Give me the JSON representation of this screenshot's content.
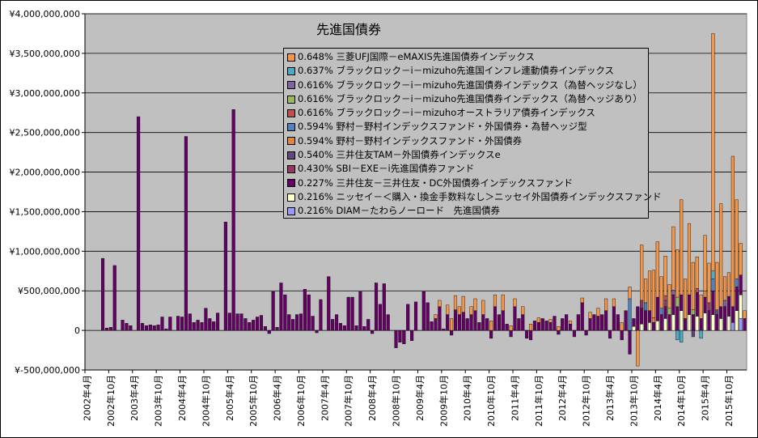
{
  "chart_data": {
    "type": "bar",
    "stacked": true,
    "title": "先進国債券",
    "xlabel": "",
    "ylabel": "",
    "ylim": [
      -500000000,
      4000000000
    ],
    "y_ticks": [
      -500000000,
      0,
      500000000,
      1000000000,
      1500000000,
      2000000000,
      2500000000,
      3000000000,
      3500000000,
      4000000000
    ],
    "y_tick_labels": [
      "¥-500,000,000",
      "0",
      "¥500,000,000",
      "¥1,000,000,000",
      "¥1,500,000,000",
      "¥2,000,000,000",
      "¥2,500,000,000",
      "¥3,000,000,000",
      "¥3,500,000,000",
      "¥4,000,000,000"
    ],
    "x_tick_labels": [
      "2002年4月",
      "2002年10月",
      "2003年4月",
      "2003年10月",
      "2004年4月",
      "2004年10月",
      "2005年4月",
      "2005年10月",
      "2006年4月",
      "2006年10月",
      "2007年4月",
      "2007年10月",
      "2008年4月",
      "2008年10月",
      "2009年4月",
      "2009年10月",
      "2010年4月",
      "2010年10月",
      "2011年4月",
      "2011年10月",
      "2012年4月",
      "2012年10月",
      "2013年4月",
      "2013年10月",
      "2014年4月",
      "2014年10月",
      "2015年4月",
      "2015年10月"
    ],
    "grid": true,
    "legend_position": "top-center",
    "background": "#c0c0c0",
    "categories": [
      "2002年4月",
      "2002年5月",
      "2002年6月",
      "2002年7月",
      "2002年8月",
      "2002年9月",
      "2002年10月",
      "2002年11月",
      "2002年12月",
      "2003年1月",
      "2003年2月",
      "2003年3月",
      "2003年4月",
      "2003年5月",
      "2003年6月",
      "2003年7月",
      "2003年8月",
      "2003年9月",
      "2003年10月",
      "2003年11月",
      "2003年12月",
      "2004年1月",
      "2004年2月",
      "2004年3月",
      "2004年4月",
      "2004年5月",
      "2004年6月",
      "2004年7月",
      "2004年8月",
      "2004年9月",
      "2004年10月",
      "2004年11月",
      "2004年12月",
      "2005年1月",
      "2005年2月",
      "2005年3月",
      "2005年4月",
      "2005年5月",
      "2005年6月",
      "2005年7月",
      "2005年8月",
      "2005年9月",
      "2005年10月",
      "2005年11月",
      "2005年12月",
      "2006年1月",
      "2006年2月",
      "2006年3月",
      "2006年4月",
      "2006年5月",
      "2006年6月",
      "2006年7月",
      "2006年8月",
      "2006年9月",
      "2006年10月",
      "2006年11月",
      "2006年12月",
      "2007年1月",
      "2007年2月",
      "2007年3月",
      "2007年4月",
      "2007年5月",
      "2007年6月",
      "2007年7月",
      "2007年8月",
      "2007年9月",
      "2007年10月",
      "2007年11月",
      "2007年12月",
      "2008年1月",
      "2008年2月",
      "2008年3月",
      "2008年4月",
      "2008年5月",
      "2008年6月",
      "2008年7月",
      "2008年8月",
      "2008年9月",
      "2008年10月",
      "2008年11月",
      "2008年12月",
      "2009年1月",
      "2009年2月",
      "2009年3月",
      "2009年4月",
      "2009年5月",
      "2009年6月",
      "2009年7月",
      "2009年8月",
      "2009年9月",
      "2009年10月",
      "2009年11月",
      "2009年12月",
      "2010年1月",
      "2010年2月",
      "2010年3月",
      "2010年4月",
      "2010年5月",
      "2010年6月",
      "2010年7月",
      "2010年8月",
      "2010年9月",
      "2010年10月",
      "2010年11月",
      "2010年12月",
      "2011年1月",
      "2011年2月",
      "2011年3月",
      "2011年4月",
      "2011年5月",
      "2011年6月",
      "2011年7月",
      "2011年8月",
      "2011年9月",
      "2011年10月",
      "2011年11月",
      "2011年12月",
      "2012年1月",
      "2012年2月",
      "2012年3月",
      "2012年4月",
      "2012年5月",
      "2012年6月",
      "2012年7月",
      "2012年8月",
      "2012年9月",
      "2012年10月",
      "2012年11月",
      "2012年12月",
      "2013年1月",
      "2013年2月",
      "2013年3月",
      "2013年4月",
      "2013年5月",
      "2013年6月",
      "2013年7月",
      "2013年8月",
      "2013年9月",
      "2013年10月",
      "2013年11月",
      "2013年12月",
      "2014年1月",
      "2014年2月",
      "2014年3月",
      "2014年4月",
      "2014年5月",
      "2014年6月",
      "2014年7月",
      "2014年8月",
      "2014年9月",
      "2014年10月",
      "2014年11月",
      "2014年12月",
      "2015年1月",
      "2015年2月",
      "2015年3月",
      "2015年4月",
      "2015年5月",
      "2015年6月",
      "2015年7月",
      "2015年8月",
      "2015年9月",
      "2015年10月",
      "2015年11月",
      "2015年12月",
      "2016年1月",
      "2016年2月"
    ],
    "series": [
      {
        "name": "0.648% 三菱UFJ国際－eMAXIS先進国債券インデックス",
        "color": "#f79646",
        "points": [
          [
            "2009年8月",
            50000000.0
          ],
          [
            "2009年9月",
            80000000.0
          ],
          [
            "2009年11月",
            120000000.0
          ],
          [
            "2009年12月",
            150000000.0
          ],
          [
            "2010年1月",
            180000000.0
          ],
          [
            "2010年2月",
            100000000.0
          ],
          [
            "2010年3月",
            200000000.0
          ],
          [
            "2010年5月",
            100000000.0
          ],
          [
            "2010年6月",
            150000000.0
          ],
          [
            "2010年8月",
            180000000.0
          ],
          [
            "2010年10月",
            120000000.0
          ],
          [
            "2010年11月",
            150000000.0
          ],
          [
            "2011年1月",
            200000000.0
          ],
          [
            "2011年3月",
            60000000.0
          ],
          [
            "2011年4月",
            100000000.0
          ],
          [
            "2011年6月",
            100000000.0
          ],
          [
            "2011年8月",
            80000000.0
          ],
          [
            "2011年10月",
            60000000.0
          ],
          [
            "2012年1月",
            40000000.0
          ],
          [
            "2012年3月",
            50000000.0
          ],
          [
            "2012年6月",
            40000000.0
          ],
          [
            "2012年9月",
            60000000.0
          ],
          [
            "2012年11月",
            80000000.0
          ],
          [
            "2013年1月",
            100000000.0
          ],
          [
            "2013年3月",
            150000000.0
          ],
          [
            "2013年5月",
            100000000.0
          ],
          [
            "2013年7月",
            100000000.0
          ],
          [
            "2013年9月",
            150000000.0
          ],
          [
            "2013年11月",
            -450000000.0
          ],
          [
            "2013年12月",
            700000000.0
          ],
          [
            "2014年1月",
            300000000.0
          ],
          [
            "2014年2月",
            500000000.0
          ],
          [
            "2014年3月",
            600000000.0
          ],
          [
            "2014年4月",
            700000000.0
          ],
          [
            "2014年5月",
            400000000.0
          ],
          [
            "2014年6月",
            500000000.0
          ],
          [
            "2014年7月",
            300000000.0
          ],
          [
            "2014年8月",
            800000000.0
          ],
          [
            "2014年9月",
            600000000.0
          ],
          [
            "2014年10月",
            1200000000.0
          ],
          [
            "2014年11月",
            500000000.0
          ],
          [
            "2014年12月",
            900000000.0
          ],
          [
            "2015年1月",
            600000000.0
          ],
          [
            "2015年2月",
            400000000.0
          ],
          [
            "2015年3月",
            300000000.0
          ],
          [
            "2015年4月",
            700000000.0
          ],
          [
            "2015年5月",
            500000000.0
          ],
          [
            "2015年6月",
            3000000000.0
          ],
          [
            "2015年7月",
            600000000.0
          ],
          [
            "2015年8月",
            1300000000.0
          ],
          [
            "2015年9月",
            300000000.0
          ],
          [
            "2015年10月",
            300000000.0
          ],
          [
            "2015年11月",
            1900000000.0
          ],
          [
            "2015年12月",
            1000000000.0
          ],
          [
            "2016年1月",
            400000000.0
          ],
          [
            "2016年2月",
            100000000.0
          ]
        ]
      },
      {
        "name": "0.637% ブラックロック－i－mizuho先進国インフレ連動債券インデックス",
        "color": "#4bacc6",
        "points": [
          [
            "2014年9月",
            -120000000.0
          ],
          [
            "2014年10月",
            -150000000.0
          ],
          [
            "2015年3月",
            -100000000.0
          ],
          [
            "2015年6月",
            100000000.0
          ]
        ]
      },
      {
        "name": "0.616% ブラックロック－i－mizuho先進国債券インデックス（為替ヘッジなし）",
        "color": "#8064a2",
        "points": [
          [
            "2014年8月",
            60000000.0
          ],
          [
            "2015年9月",
            80000000.0
          ]
        ]
      },
      {
        "name": "0.616% ブラックロック－i－mizuho先進国債券インデックス（為替ヘッジあり）",
        "color": "#9bbb59",
        "points": [
          [
            "2014年7月",
            80000000.0
          ],
          [
            "2014年9月",
            120000000.0
          ],
          [
            "2015年1月",
            60000000.0
          ]
        ]
      },
      {
        "name": "0.616% ブラックロック－i－mizuhoオーストラリア債券インデックス",
        "color": "#c0504d",
        "points": [
          [
            "2014年6月",
            60000000.0
          ],
          [
            "2015年2月",
            50000000.0
          ]
        ]
      },
      {
        "name": "0.594% 野村－野村インデックスファンド・外国債券・為替ヘッジ型",
        "color": "#4f81bd",
        "points": [
          [
            "2013年9月",
            400000000.0
          ],
          [
            "2014年1月",
            100000000.0
          ],
          [
            "2014年5月",
            80000000.0
          ],
          [
            "2015年6月",
            150000000.0
          ],
          [
            "2015年12月",
            100000000.0
          ]
        ]
      },
      {
        "name": "0.594% 野村－野村インデックスファンド・外国債券",
        "color": "#e0843e",
        "points": [
          [
            "2014年3月",
            60000000.0
          ],
          [
            "2015年4月",
            80000000.0
          ]
        ]
      },
      {
        "name": "0.540% 三井住友TAM－外国債券インデックスe",
        "color": "#604a7b",
        "points": [
          [
            "2015年1月",
            -80000000.0
          ],
          [
            "2015年7月",
            60000000.0
          ]
        ]
      },
      {
        "name": "0.430% SBI－EXE－i先進国債券ファンド",
        "color": "#953860",
        "points": [
          [
            "2013年12月",
            100000000.0
          ],
          [
            "2014年6月",
            80000000.0
          ],
          [
            "2015年5月",
            100000000.0
          ]
        ]
      },
      {
        "name": "0.227% 三井住友－三井住友・DC外国債券インデックスファンド",
        "color": "#660066",
        "values": [
          0,
          0,
          0,
          0,
          910000000.0,
          30000000.0,
          40000000.0,
          820000000.0,
          0,
          130000000.0,
          90000000.0,
          60000000.0,
          0,
          2700000000.0,
          90000000.0,
          60000000.0,
          70000000.0,
          60000000.0,
          70000000.0,
          170000000.0,
          20000000.0,
          170000000.0,
          0,
          180000000.0,
          170000000.0,
          2450000000.0,
          210000000.0,
          100000000.0,
          130000000.0,
          100000000.0,
          280000000.0,
          150000000.0,
          110000000.0,
          220000000.0,
          0,
          1370000000.0,
          220000000.0,
          2790000000.0,
          210000000.0,
          210000000.0,
          150000000.0,
          100000000.0,
          130000000.0,
          170000000.0,
          190000000.0,
          50000000.0,
          -40000000.0,
          490000000.0,
          40000000.0,
          600000000.0,
          450000000.0,
          200000000.0,
          140000000.0,
          200000000.0,
          210000000.0,
          520000000.0,
          450000000.0,
          180000000.0,
          -30000000.0,
          390000000.0,
          0,
          680000000.0,
          140000000.0,
          200000000.0,
          90000000.0,
          60000000.0,
          420000000.0,
          420000000.0,
          60000000.0,
          490000000.0,
          50000000.0,
          140000000.0,
          -40000000.0,
          600000000.0,
          330000000.0,
          590000000.0,
          200000000.0,
          0,
          -220000000.0,
          -150000000.0,
          -170000000.0,
          330000000.0,
          -130000000.0,
          360000000.0,
          0,
          490000000.0,
          350000000.0,
          110000000.0,
          150000000.0,
          300000000.0,
          20000000.0,
          200000000.0,
          -60000000.0,
          260000000.0,
          200000000.0,
          230000000.0,
          150000000.0,
          200000000.0,
          250000000.0,
          100000000.0,
          200000000.0,
          150000000.0,
          -100000000.0,
          300000000.0,
          200000000.0,
          250000000.0,
          80000000.0,
          -80000000.0,
          300000000.0,
          150000000.0,
          200000000.0,
          -100000000.0,
          -120000000.0,
          120000000.0,
          100000000.0,
          150000000.0,
          120000000.0,
          100000000.0,
          180000000.0,
          -50000000.0,
          150000000.0,
          200000000.0,
          80000000.0,
          -80000000.0,
          200000000.0,
          350000000.0,
          -60000000.0,
          150000000.0,
          200000000.0,
          180000000.0,
          200000000.0,
          250000000.0,
          -100000000.0,
          300000000.0,
          200000000.0,
          -120000000.0,
          250000000.0,
          -300000000.0,
          100000000.0,
          300000000.0,
          200000000.0,
          250000000.0,
          150000000.0,
          100000000.0,
          300000000.0,
          200000000.0,
          150000000.0,
          200000000.0,
          250000000.0,
          300000000.0,
          200000000.0,
          150000000.0,
          250000000.0,
          200000000.0,
          300000000.0,
          150000000.0,
          200000000.0,
          250000000.0,
          300000000.0,
          200000000.0,
          150000000.0,
          300000000.0,
          250000000.0,
          200000000.0,
          300000000.0,
          250000000.0,
          150000000.0
        ]
      },
      {
        "name": "0.216% ニッセイ－＜購入・換金手数料なし＞ニッセイ外国債券インデックスファンド",
        "color": "#ffffcc",
        "points": [
          [
            "2013年10月",
            50000000.0
          ],
          [
            "2013年12月",
            80000000.0
          ],
          [
            "2014年2月",
            100000000.0
          ],
          [
            "2014年4月",
            120000000.0
          ],
          [
            "2014年6月",
            150000000.0
          ],
          [
            "2014年8月",
            200000000.0
          ],
          [
            "2014年10月",
            250000000.0
          ],
          [
            "2014年12月",
            200000000.0
          ],
          [
            "2015年2月",
            180000000.0
          ],
          [
            "2015年4月",
            220000000.0
          ],
          [
            "2015年6月",
            200000000.0
          ],
          [
            "2015年8月",
            150000000.0
          ],
          [
            "2015年10月",
            180000000.0
          ],
          [
            "2015年12月",
            250000000.0
          ],
          [
            "2016年1月",
            300000000.0
          ]
        ]
      },
      {
        "name": "0.216% DIAM－たわらノーロード　先進国債券",
        "color": "#9999ff",
        "points": [
          [
            "2015年11月",
            100000000.0
          ],
          [
            "2016年1月",
            150000000.0
          ]
        ]
      }
    ]
  }
}
